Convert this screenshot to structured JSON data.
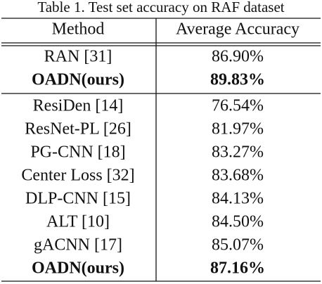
{
  "caption": "Table 1. Test set accuracy on RAF dataset",
  "table": {
    "header": [
      "Method",
      "Average Accuracy"
    ],
    "groups": [
      [
        {
          "method": "RAN [31]",
          "accuracy": "86.90%",
          "bold": false
        },
        {
          "method": "OADN(ours)",
          "accuracy": "89.83%",
          "bold": true
        }
      ],
      [
        {
          "method": "ResiDen [14]",
          "accuracy": "76.54%",
          "bold": false
        },
        {
          "method": "ResNet-PL [26]",
          "accuracy": "81.97%",
          "bold": false
        },
        {
          "method": "PG-CNN [18]",
          "accuracy": "83.27%",
          "bold": false
        },
        {
          "method": "Center Loss [32]",
          "accuracy": "83.68%",
          "bold": false
        },
        {
          "method": "DLP-CNN [15]",
          "accuracy": "84.13%",
          "bold": false
        },
        {
          "method": "ALT [10]",
          "accuracy": "84.50%",
          "bold": false
        },
        {
          "method": "gACNN [17]",
          "accuracy": "85.07%",
          "bold": false
        },
        {
          "method": "OADN(ours)",
          "accuracy": "87.16%",
          "bold": true
        }
      ]
    ]
  }
}
